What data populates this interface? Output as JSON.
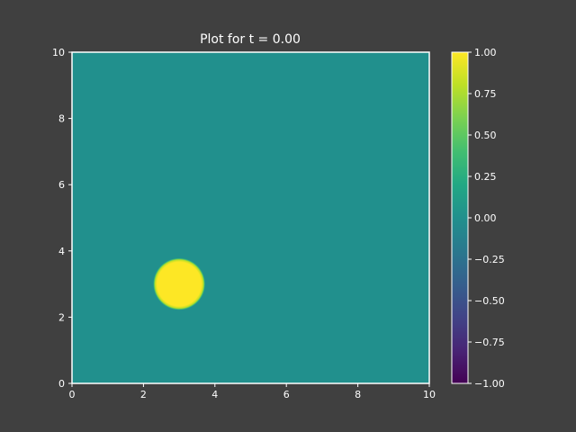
{
  "figure": {
    "background": "#404040",
    "foreground": "#ffffff"
  },
  "chart_data": {
    "type": "heatmap",
    "title": "Plot for t = 0.00",
    "xlabel": "",
    "ylabel": "",
    "xlim": [
      0,
      10
    ],
    "ylim": [
      0,
      10
    ],
    "x_ticks": [
      0,
      2,
      4,
      6,
      8,
      10
    ],
    "y_ticks": [
      0,
      2,
      4,
      6,
      8,
      10
    ],
    "x_tick_labels": [
      "0",
      "2",
      "4",
      "6",
      "8",
      "10"
    ],
    "y_tick_labels": [
      "0",
      "2",
      "4",
      "6",
      "8",
      "10"
    ],
    "grid": false,
    "field": {
      "background_value": 0.0,
      "blob": {
        "center_x": 3.0,
        "center_y": 3.0,
        "radius": 0.75,
        "value": 1.0
      }
    },
    "colorbar": {
      "colormap": "viridis",
      "min": -1.0,
      "max": 1.0,
      "placement": "right",
      "ticks": [
        1.0,
        0.75,
        0.5,
        0.25,
        0.0,
        -0.25,
        -0.5,
        -0.75,
        -1.0
      ],
      "tick_labels": [
        "1.00",
        "0.75",
        "0.50",
        "0.25",
        "0.00",
        "−0.25",
        "−0.50",
        "−0.75",
        "−1.00"
      ]
    },
    "colors": {
      "background_value_color": "#21908d",
      "max_color": "#fde725",
      "min_color": "#440154"
    }
  }
}
